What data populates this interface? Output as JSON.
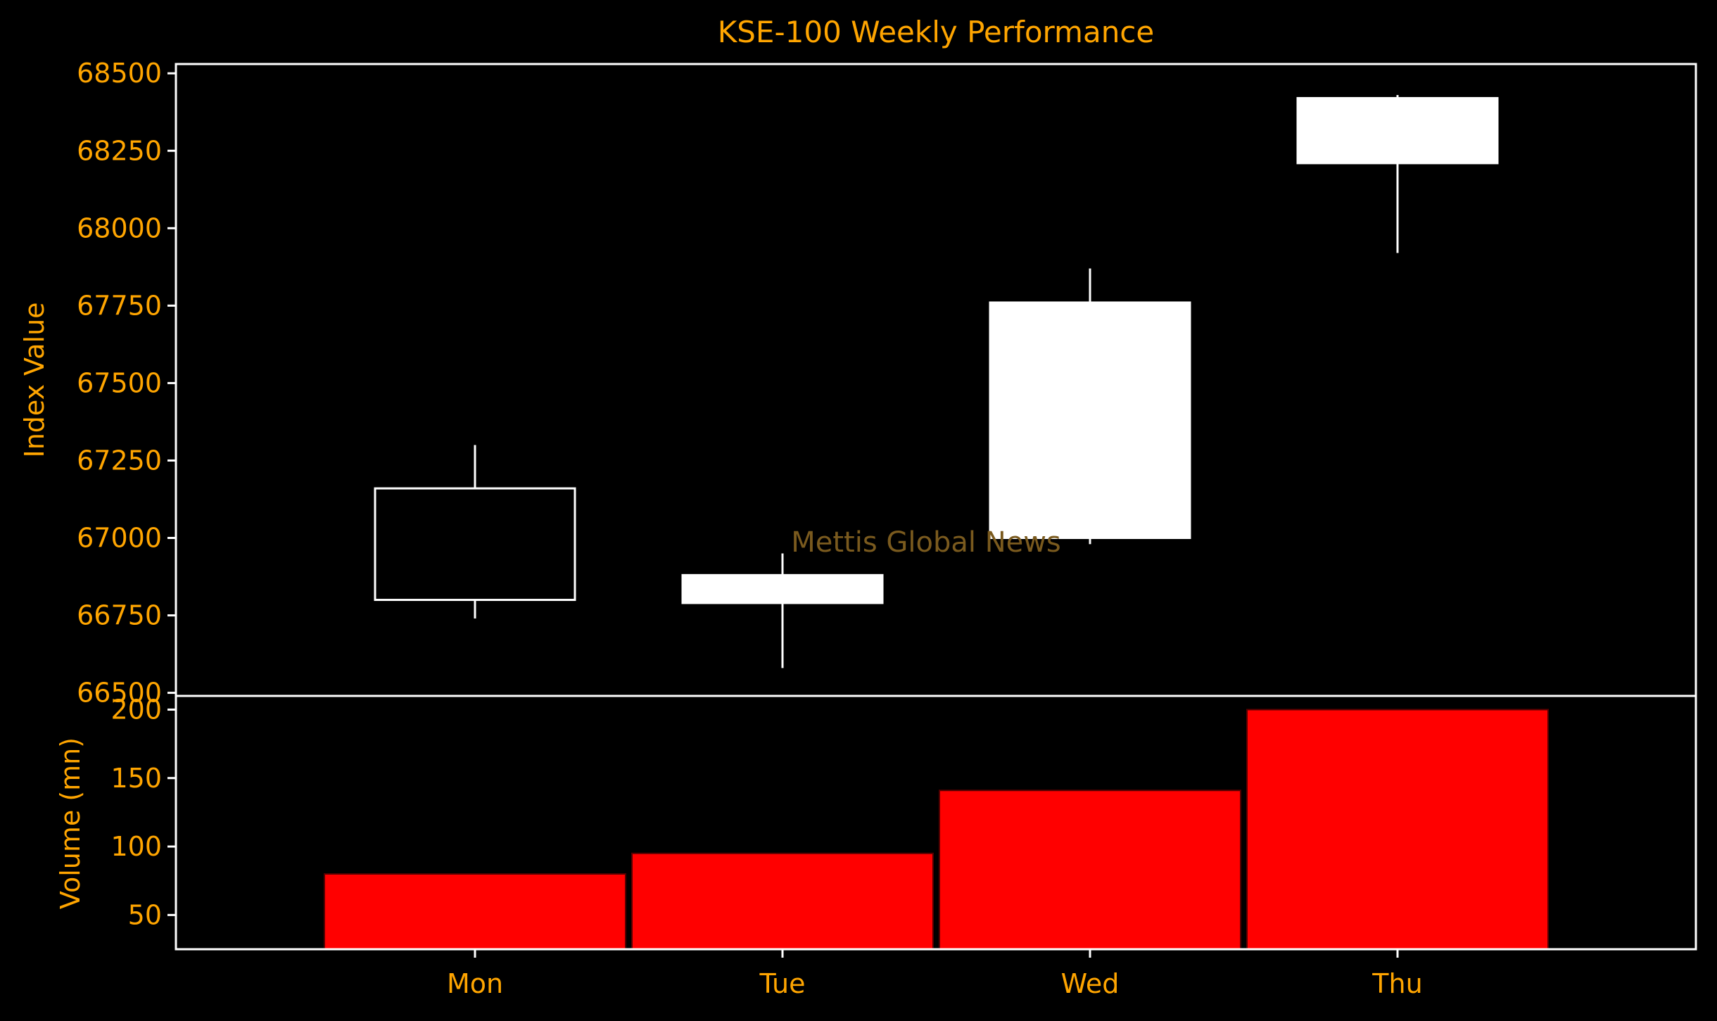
{
  "colors": {
    "background": "#000000",
    "text": "#ffa500",
    "axis": "#ffffff",
    "candle_up_fill": "#ffffff",
    "candle_down_fill": "#000000",
    "candle_edge": "#ffffff",
    "volume_bar": "#ff0000",
    "watermark": "#7a5a1e"
  },
  "chart_data": [
    {
      "type": "candlestick",
      "title": "KSE-100 Weekly Performance",
      "ylabel": "Index Value",
      "watermark": "Mettis Global News",
      "categories": [
        "Mon",
        "Tue",
        "Wed",
        "Thu"
      ],
      "ohlc": [
        {
          "open": 67160,
          "high": 67300,
          "low": 66740,
          "close": 66800
        },
        {
          "open": 66790,
          "high": 66950,
          "low": 66580,
          "close": 66880
        },
        {
          "open": 67000,
          "high": 67870,
          "low": 66980,
          "close": 67760
        },
        {
          "open": 68210,
          "high": 68430,
          "low": 67920,
          "close": 68420
        }
      ],
      "ylim": [
        66490,
        68530
      ],
      "yticks": [
        66500,
        66750,
        67000,
        67250,
        67500,
        67750,
        68000,
        68250,
        68500
      ],
      "grid": false
    },
    {
      "type": "bar",
      "ylabel": "Volume (mn)",
      "categories": [
        "Mon",
        "Tue",
        "Wed",
        "Thu"
      ],
      "values": [
        80,
        95,
        141,
        200
      ],
      "ylim": [
        25,
        210
      ],
      "yticks": [
        50,
        100,
        150,
        200
      ],
      "grid": false
    }
  ]
}
